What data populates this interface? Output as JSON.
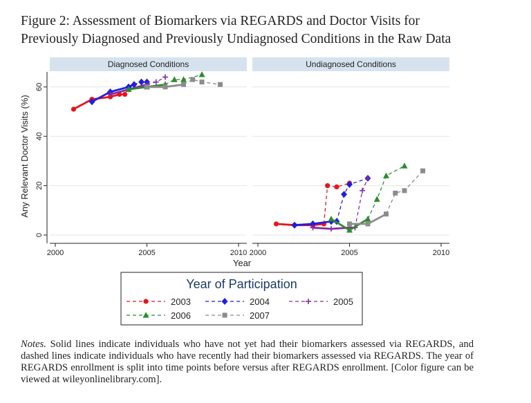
{
  "figure": {
    "title_line1": "Figure 2:   Assessment of Biomarkers via REGARDS and Doctor Visits for",
    "title_line2": "Previously Diagnosed and Previously Undiagnosed Conditions in the Raw Data",
    "notes_label": "Notes.",
    "notes_text": " Solid lines indicate individuals who have not yet had their biomarkers assessed via REGARDS, and dashed lines indicate individuals who have recently had their biomarkers assessed via REGARDS. The year of REGARDS enrollment is split into time points before versus after REGARDS enrollment. [Color figure can be viewed at wileyonlinelibrary.com]."
  },
  "chart_data": {
    "type": "line",
    "ylabel": "Any Relevant Doctor Visits (%)",
    "xlabel": "Year",
    "xlim": [
      2000,
      2010
    ],
    "ylim": [
      0,
      65
    ],
    "xticks": [
      2000,
      2005,
      2010
    ],
    "yticks": [
      0,
      20,
      40,
      60
    ],
    "grid": true,
    "legend": {
      "title": "Year of Participation",
      "placement": "bottom-center",
      "entries": [
        "2003",
        "2004",
        "2005",
        "2006",
        "2007"
      ]
    },
    "colors": {
      "2003": "#e8141e",
      "2004": "#1f1fe0",
      "2005": "#8a2a9e",
      "2006": "#2e8b2e",
      "2007": "#8c8c8c",
      "panel_header": "#d6e3ee"
    },
    "panels": [
      {
        "title": "Diagnosed Conditions",
        "series": [
          {
            "name": "2003",
            "marker": "circle",
            "solid": [
              [
                2001.0,
                51
              ],
              [
                2002.0,
                55
              ],
              [
                2003.0,
                56
              ],
              [
                2003.5,
                57
              ],
              [
                2003.8,
                57
              ]
            ],
            "dashed": []
          },
          {
            "name": "2004",
            "marker": "diamond",
            "solid": [
              [
                2002.0,
                54
              ],
              [
                2003.0,
                58
              ],
              [
                2004.0,
                60
              ],
              [
                2004.3,
                61
              ]
            ],
            "dashed": [
              [
                2004.3,
                61
              ],
              [
                2004.7,
                62
              ],
              [
                2005.0,
                62
              ]
            ]
          },
          {
            "name": "2005",
            "marker": "plus",
            "solid": [
              [
                2003.0,
                57
              ],
              [
                2004.0,
                59
              ],
              [
                2005.0,
                61
              ]
            ],
            "dashed": [
              [
                2005.0,
                61
              ],
              [
                2005.5,
                62
              ],
              [
                2006.0,
                64
              ]
            ]
          },
          {
            "name": "2006",
            "marker": "triangle",
            "solid": [
              [
                2004.0,
                59
              ],
              [
                2005.0,
                60
              ],
              [
                2006.0,
                61
              ]
            ],
            "dashed": [
              [
                2006.0,
                61
              ],
              [
                2006.5,
                63
              ],
              [
                2007.0,
                63
              ],
              [
                2008.0,
                65
              ]
            ]
          },
          {
            "name": "2007",
            "marker": "square",
            "solid": [
              [
                2005.0,
                60
              ],
              [
                2006.0,
                60
              ],
              [
                2007.0,
                61
              ]
            ],
            "dashed": [
              [
                2007.0,
                61
              ],
              [
                2007.5,
                63
              ],
              [
                2008.0,
                62
              ],
              [
                2009.0,
                61
              ]
            ]
          }
        ]
      },
      {
        "title": "Undiagnosed Conditions",
        "series": [
          {
            "name": "2003",
            "marker": "circle",
            "solid": [
              [
                2001.0,
                4.5
              ],
              [
                2002.0,
                4
              ],
              [
                2003.0,
                4
              ],
              [
                2003.6,
                4.5
              ]
            ],
            "dashed": [
              [
                2003.6,
                4.5
              ],
              [
                2003.8,
                20
              ],
              [
                2004.3,
                19.5
              ],
              [
                2005.0,
                21
              ]
            ]
          },
          {
            "name": "2004",
            "marker": "diamond",
            "solid": [
              [
                2002.0,
                4
              ],
              [
                2003.0,
                4.5
              ],
              [
                2004.0,
                5.5
              ],
              [
                2004.3,
                5.5
              ]
            ],
            "dashed": [
              [
                2004.3,
                5.5
              ],
              [
                2004.7,
                16.5
              ],
              [
                2005.0,
                20.5
              ],
              [
                2006.0,
                23
              ]
            ]
          },
          {
            "name": "2005",
            "marker": "plus",
            "solid": [
              [
                2003.0,
                3
              ],
              [
                2004.0,
                2.5
              ],
              [
                2005.0,
                3
              ],
              [
                2005.3,
                3
              ]
            ],
            "dashed": [
              [
                2005.3,
                3
              ],
              [
                2005.7,
                18
              ],
              [
                2006.0,
                23
              ]
            ]
          },
          {
            "name": "2006",
            "marker": "triangle",
            "solid": [
              [
                2004.0,
                6.5
              ],
              [
                2005.0,
                2
              ],
              [
                2006.0,
                6.5
              ]
            ],
            "dashed": [
              [
                2006.0,
                6.5
              ],
              [
                2006.5,
                14.5
              ],
              [
                2007.0,
                24
              ],
              [
                2008.0,
                28
              ]
            ]
          },
          {
            "name": "2007",
            "marker": "square",
            "solid": [
              [
                2005.0,
                4.5
              ],
              [
                2006.0,
                4.5
              ],
              [
                2007.0,
                8.5
              ]
            ],
            "dashed": [
              [
                2007.0,
                8.5
              ],
              [
                2007.5,
                17
              ],
              [
                2008.0,
                18
              ],
              [
                2009.0,
                26
              ]
            ]
          }
        ]
      }
    ]
  }
}
